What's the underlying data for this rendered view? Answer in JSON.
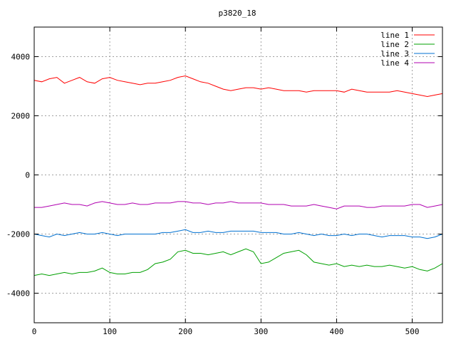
{
  "chart_data": {
    "type": "line",
    "title": "p3820_18",
    "xlabel": "",
    "ylabel": "",
    "xlim": [
      0,
      540
    ],
    "ylim": [
      -5000,
      5000
    ],
    "xticks": [
      0,
      100,
      200,
      300,
      400,
      500
    ],
    "yticks": [
      -4000,
      -2000,
      0,
      2000,
      4000
    ],
    "grid": true,
    "legend_position": "top-right",
    "x": [
      0,
      10,
      20,
      30,
      40,
      50,
      60,
      70,
      80,
      90,
      100,
      110,
      120,
      130,
      140,
      150,
      160,
      170,
      180,
      190,
      200,
      210,
      220,
      230,
      240,
      250,
      260,
      270,
      280,
      290,
      300,
      310,
      320,
      330,
      340,
      350,
      360,
      370,
      380,
      390,
      400,
      410,
      420,
      430,
      440,
      450,
      460,
      470,
      480,
      490,
      500,
      510,
      520,
      530,
      540
    ],
    "series": [
      {
        "name": "line 1",
        "color": "#ff0000",
        "values": [
          3200,
          3150,
          3250,
          3300,
          3100,
          3200,
          3300,
          3150,
          3100,
          3250,
          3300,
          3200,
          3150,
          3100,
          3050,
          3100,
          3100,
          3150,
          3200,
          3300,
          3350,
          3250,
          3150,
          3100,
          3000,
          2900,
          2850,
          2900,
          2950,
          2950,
          2900,
          2950,
          2900,
          2850,
          2850,
          2850,
          2800,
          2850,
          2850,
          2850,
          2850,
          2800,
          2900,
          2850,
          2800,
          2800,
          2800,
          2800,
          2850,
          2800,
          2750,
          2700,
          2650,
          2700,
          2750
        ]
      },
      {
        "name": "line 2",
        "color": "#00a000",
        "values": [
          -3400,
          -3350,
          -3400,
          -3350,
          -3300,
          -3350,
          -3300,
          -3300,
          -3250,
          -3150,
          -3300,
          -3350,
          -3350,
          -3300,
          -3300,
          -3200,
          -3000,
          -2950,
          -2850,
          -2600,
          -2550,
          -2650,
          -2650,
          -2700,
          -2650,
          -2600,
          -2700,
          -2600,
          -2500,
          -2600,
          -3000,
          -2950,
          -2800,
          -2650,
          -2600,
          -2550,
          -2700,
          -2950,
          -3000,
          -3050,
          -3000,
          -3100,
          -3050,
          -3100,
          -3050,
          -3100,
          -3100,
          -3050,
          -3100,
          -3150,
          -3100,
          -3200,
          -3250,
          -3150,
          -3000
        ]
      },
      {
        "name": "line 3",
        "color": "#0070d0",
        "values": [
          -2000,
          -2050,
          -2100,
          -2000,
          -2050,
          -2000,
          -1950,
          -2000,
          -2000,
          -1950,
          -2000,
          -2050,
          -2000,
          -2000,
          -2000,
          -2000,
          -2000,
          -1950,
          -1950,
          -1900,
          -1850,
          -1950,
          -1950,
          -1900,
          -1950,
          -1950,
          -1900,
          -1900,
          -1900,
          -1900,
          -1950,
          -1950,
          -1950,
          -2000,
          -2000,
          -1950,
          -2000,
          -2050,
          -2000,
          -2050,
          -2050,
          -2000,
          -2050,
          -2000,
          -2000,
          -2050,
          -2100,
          -2050,
          -2050,
          -2050,
          -2100,
          -2100,
          -2150,
          -2100,
          -2000
        ]
      },
      {
        "name": "line 4",
        "color": "#b000b0",
        "values": [
          -1100,
          -1100,
          -1050,
          -1000,
          -950,
          -1000,
          -1000,
          -1050,
          -950,
          -900,
          -950,
          -1000,
          -1000,
          -950,
          -1000,
          -1000,
          -950,
          -950,
          -950,
          -900,
          -900,
          -950,
          -950,
          -1000,
          -950,
          -950,
          -900,
          -950,
          -950,
          -950,
          -950,
          -1000,
          -1000,
          -1000,
          -1050,
          -1050,
          -1050,
          -1000,
          -1050,
          -1100,
          -1150,
          -1050,
          -1050,
          -1050,
          -1100,
          -1100,
          -1050,
          -1050,
          -1050,
          -1050,
          -1000,
          -1000,
          -1100,
          -1050,
          -1000
        ]
      }
    ]
  }
}
